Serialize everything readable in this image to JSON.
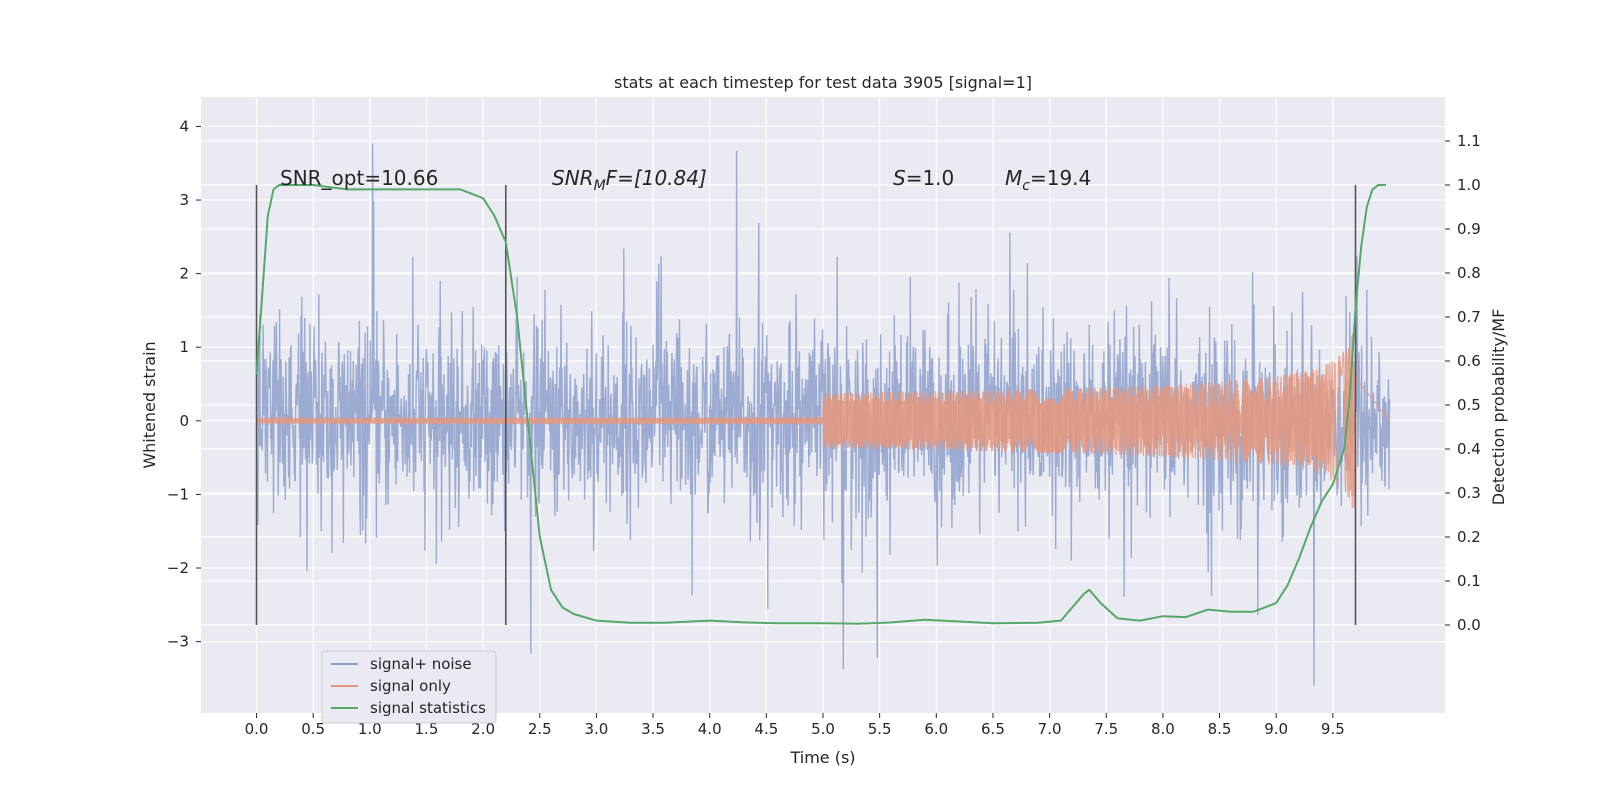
{
  "chart_data": {
    "type": "line",
    "title": "stats at each timestep for test data 3905 [signal=1]",
    "xlabel": "Time (s)",
    "ylabel_left": "Whitened strain",
    "ylabel_right": "Detection probability/MF",
    "xlim": [
      -0.49,
      10.49
    ],
    "ylim_left": [
      -3.97,
      4.4
    ],
    "ylim_right": [
      -0.2,
      1.2
    ],
    "x_ticks": [
      "0.0",
      "0.5",
      "1.0",
      "1.5",
      "2.0",
      "2.5",
      "3.0",
      "3.5",
      "4.0",
      "4.5",
      "5.0",
      "5.5",
      "6.0",
      "6.5",
      "7.0",
      "7.5",
      "8.0",
      "8.5",
      "9.0",
      "9.5"
    ],
    "y_ticks_left": [
      "4",
      "3",
      "2",
      "1",
      "0",
      "−1",
      "−2",
      "−3"
    ],
    "y_ticks_right": [
      "1.1",
      "1.0",
      "0.9",
      "0.8",
      "0.7",
      "0.6",
      "0.5",
      "0.4",
      "0.3",
      "0.2",
      "0.1",
      "0.0"
    ],
    "grid": true,
    "legend_position": "lower-left",
    "annotations": {
      "snr_opt": "SNR_opt=10.66",
      "snr_mf_sym": "SNR",
      "snr_mf_sub": "M",
      "snr_mf_rest": "F=[10.84]",
      "s_sym": "S",
      "s_rest": "=1.0",
      "mc_sym": "M",
      "mc_sub": "c",
      "mc_rest": "=19.4"
    },
    "vertical_markers_x": [
      0.0,
      2.2,
      9.7
    ],
    "series": [
      {
        "name": "signal+ noise",
        "color": "#8da0cb",
        "axis": "left",
        "description_values": {
          "x_range": [
            0.0,
            10.0
          ],
          "noise_std": 0.62,
          "peak_max": 4.05,
          "peak_min": -3.6
        }
      },
      {
        "name": "signal only",
        "color": "#e5967c",
        "axis": "left",
        "chirp": {
          "x_start": 0.0,
          "x_end": 9.7,
          "amplitude_end": 1.35
        }
      },
      {
        "name": "signal statistics",
        "color": "#55a868",
        "axis": "right",
        "x": [
          0.0,
          0.05,
          0.1,
          0.15,
          0.2,
          0.3,
          0.5,
          0.8,
          1.0,
          1.3,
          1.5,
          1.8,
          2.0,
          2.1,
          2.2,
          2.3,
          2.4,
          2.5,
          2.6,
          2.7,
          2.8,
          3.0,
          3.3,
          3.6,
          4.0,
          4.3,
          4.6,
          5.0,
          5.3,
          5.6,
          5.9,
          6.2,
          6.5,
          6.9,
          7.1,
          7.2,
          7.3,
          7.35,
          7.45,
          7.6,
          7.8,
          8.0,
          8.2,
          8.4,
          8.6,
          8.8,
          9.0,
          9.1,
          9.2,
          9.3,
          9.4,
          9.5,
          9.6,
          9.65,
          9.7,
          9.75,
          9.8,
          9.85,
          9.9,
          9.97
        ],
        "y": [
          0.57,
          0.75,
          0.93,
          0.99,
          1.0,
          1.0,
          1.0,
          0.99,
          0.99,
          0.99,
          0.99,
          0.99,
          0.97,
          0.93,
          0.87,
          0.7,
          0.45,
          0.2,
          0.08,
          0.04,
          0.025,
          0.01,
          0.005,
          0.005,
          0.01,
          0.006,
          0.004,
          0.004,
          0.003,
          0.006,
          0.012,
          0.008,
          0.004,
          0.005,
          0.01,
          0.04,
          0.07,
          0.08,
          0.05,
          0.015,
          0.01,
          0.02,
          0.018,
          0.035,
          0.03,
          0.03,
          0.05,
          0.09,
          0.15,
          0.22,
          0.28,
          0.32,
          0.4,
          0.52,
          0.72,
          0.86,
          0.95,
          0.99,
          1.0,
          1.0
        ]
      }
    ]
  }
}
